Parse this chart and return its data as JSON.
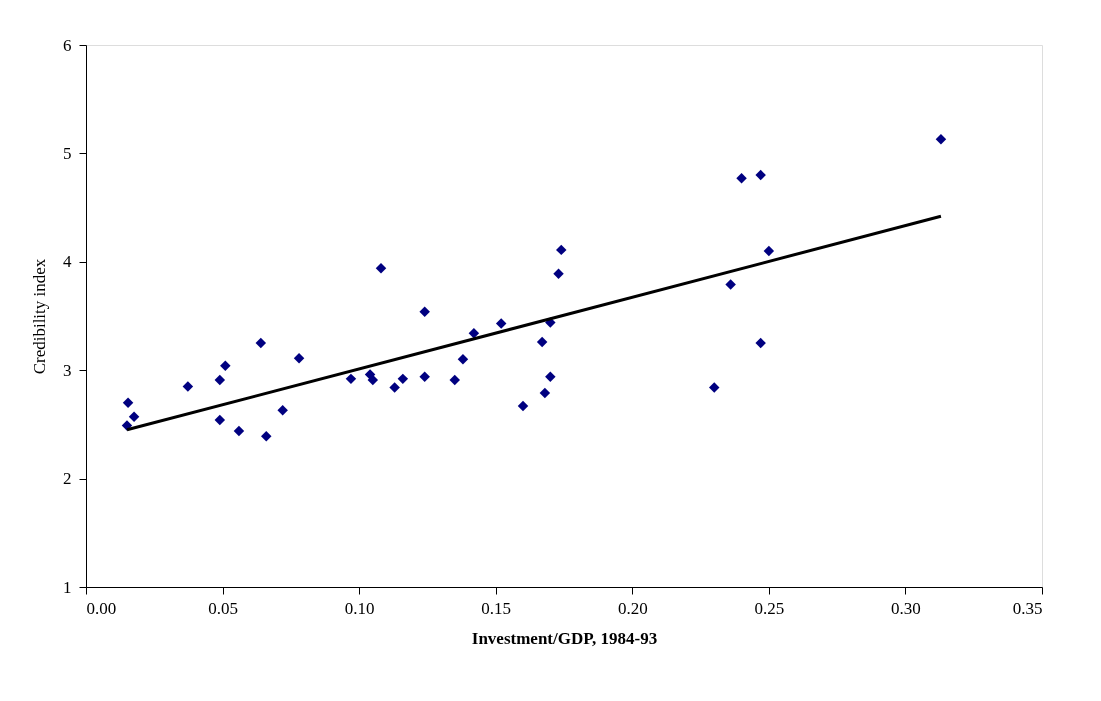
{
  "chart_data": {
    "type": "scatter",
    "xlabel": "Investment/GDP, 1984-93",
    "ylabel": "Credibility index",
    "xlim": [
      0,
      0.35
    ],
    "ylim": [
      1,
      6
    ],
    "xticks": [
      {
        "value": 0,
        "label": "0.00"
      },
      {
        "value": 0.05,
        "label": "0.05"
      },
      {
        "value": 0.1,
        "label": "0.10"
      },
      {
        "value": 0.15,
        "label": "0.15"
      },
      {
        "value": 0.2,
        "label": "0.20"
      },
      {
        "value": 0.25,
        "label": "0.25"
      },
      {
        "value": 0.3,
        "label": "0.30"
      },
      {
        "value": 0.35,
        "label": "0.35"
      }
    ],
    "yticks": [
      1,
      2,
      3,
      4,
      5,
      6
    ],
    "grid": false,
    "marker": "diamond",
    "series": [
      {
        "color": "#000080",
        "x": [
          0.0154,
          0.0176,
          0.015,
          0.0373,
          0.049,
          0.051,
          0.049,
          0.056,
          0.064,
          0.066,
          0.072,
          0.078,
          0.097,
          0.104,
          0.105,
          0.108,
          0.113,
          0.116,
          0.124,
          0.124,
          0.135,
          0.138,
          0.142,
          0.152,
          0.16,
          0.167,
          0.168,
          0.17,
          0.17,
          0.173,
          0.174,
          0.23,
          0.236,
          0.24,
          0.247,
          0.247,
          0.25,
          0.313
        ],
        "values": [
          2.7,
          2.57,
          2.49,
          2.85,
          2.91,
          3.04,
          2.54,
          2.44,
          3.25,
          2.39,
          2.63,
          3.11,
          2.92,
          2.96,
          2.91,
          3.94,
          2.84,
          2.92,
          2.94,
          3.54,
          2.91,
          3.1,
          3.34,
          3.43,
          2.67,
          3.26,
          2.79,
          2.94,
          3.44,
          3.89,
          4.11,
          2.84,
          3.79,
          4.77,
          4.8,
          3.25,
          4.1,
          5.13
        ]
      },
      {
        "type": "line",
        "color": "#000000",
        "line_style": "solid",
        "marker": "none",
        "x": [
          0.015,
          0.313
        ],
        "values": [
          2.45,
          4.42
        ]
      }
    ]
  }
}
